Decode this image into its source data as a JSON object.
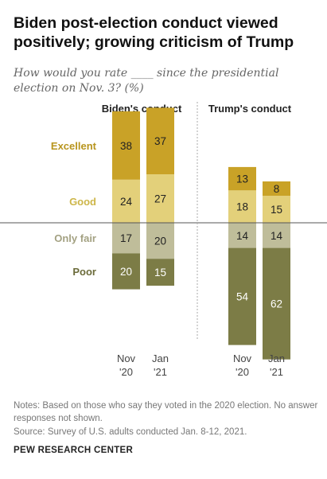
{
  "title": "Biden post-election conduct viewed positively; growing criticism of Trump",
  "subtitle": "How would you rate ____ since the presidential election on Nov. 3? (%)",
  "notes": "Notes: Based on those who say they voted in the 2020 election. No answer responses not shown.",
  "source": "Source: Survey of U.S. adults conducted Jan. 8-12, 2021.",
  "brand": "PEW RESEARCH CENTER",
  "colors": {
    "excellent": "#c9a227",
    "good": "#e3d07a",
    "only_fair": "#bfbd9a",
    "poor": "#7c7c46",
    "excellent_label": "#b8951e",
    "good_label": "#cdb649",
    "only_fair_label": "#a3a182",
    "poor_label": "#6b6b3a"
  },
  "chart_data": {
    "type": "bar",
    "stacked": "diverging",
    "legend": [
      "Excellent",
      "Good",
      "Only fair",
      "Poor"
    ],
    "groups": [
      {
        "title": "Biden's conduct",
        "categories": [
          "Nov '20",
          "Jan '21"
        ],
        "series": [
          {
            "name": "Excellent",
            "values": [
              38,
              37
            ]
          },
          {
            "name": "Good",
            "values": [
              24,
              27
            ]
          },
          {
            "name": "Only fair",
            "values": [
              17,
              20
            ]
          },
          {
            "name": "Poor",
            "values": [
              20,
              15
            ]
          }
        ]
      },
      {
        "title": "Trump's conduct",
        "categories": [
          "Nov '20",
          "Jan '21"
        ],
        "series": [
          {
            "name": "Excellent",
            "values": [
              13,
              8
            ]
          },
          {
            "name": "Good",
            "values": [
              18,
              15
            ]
          },
          {
            "name": "Only fair",
            "values": [
              14,
              14
            ]
          },
          {
            "name": "Poor",
            "values": [
              54,
              62
            ]
          }
        ]
      }
    ],
    "category_labels": [
      {
        "line1": "Nov",
        "line2": "'20"
      },
      {
        "line1": "Jan",
        "line2": "'21"
      }
    ]
  }
}
